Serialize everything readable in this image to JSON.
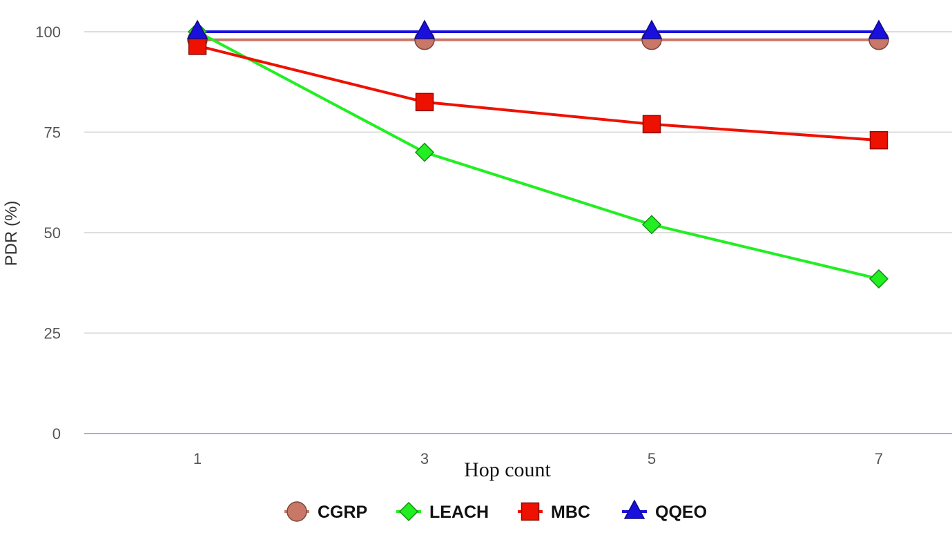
{
  "chart_data": {
    "type": "line",
    "title": "",
    "xlabel": "Hop count",
    "ylabel": "PDR (%)",
    "x": [
      1,
      3,
      5,
      7
    ],
    "x_tick_labels": [
      "1",
      "3",
      "5",
      "7"
    ],
    "y_ticks": [
      0,
      25,
      50,
      75,
      100
    ],
    "y_tick_labels": [
      "0",
      "25",
      "50",
      "75",
      "100"
    ],
    "ylim": [
      0,
      100
    ],
    "grid": true,
    "legend_position": "bottom",
    "series": [
      {
        "name": "CGRP",
        "values": [
          98,
          98,
          98,
          98
        ],
        "color": "#c97766",
        "marker": "circle"
      },
      {
        "name": "LEACH",
        "values": [
          100,
          70,
          52,
          38.5
        ],
        "color": "#22ee22",
        "marker": "diamond"
      },
      {
        "name": "MBC",
        "values": [
          96.5,
          82.5,
          77,
          73
        ],
        "color": "#ee1100",
        "marker": "square"
      },
      {
        "name": "QQEO",
        "values": [
          100,
          100,
          100,
          100
        ],
        "color": "#1a10dd",
        "marker": "triangle"
      }
    ]
  }
}
